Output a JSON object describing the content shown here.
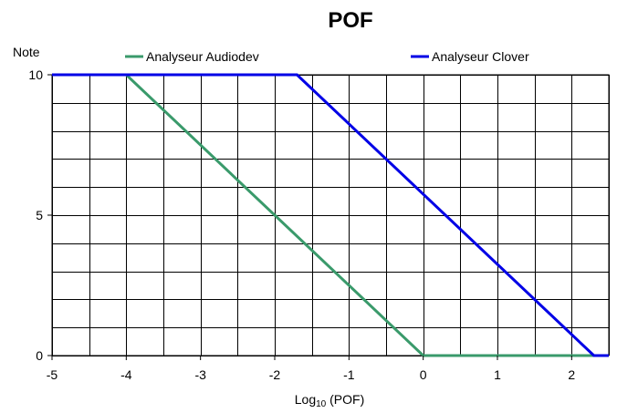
{
  "chart_data": {
    "type": "line",
    "title": "POF",
    "ylabel": "Note",
    "xlabel": "Log10 (POF)",
    "xlabel_main": "Log",
    "xlabel_sub": "10",
    "xlabel_rest": " (POF)",
    "xlim": [
      -5,
      2.5
    ],
    "ylim": [
      0,
      10
    ],
    "x_ticks": [
      -5,
      -4,
      -3,
      -2,
      -1,
      0,
      1,
      2
    ],
    "x_tick_labels": [
      "-5",
      "-4",
      "-3",
      "-2",
      "-1",
      "0",
      "1",
      "2"
    ],
    "y_ticks": [
      0,
      5,
      10
    ],
    "y_tick_labels": [
      "0",
      "5",
      "10"
    ],
    "grid": true,
    "legend_position": "top",
    "series": [
      {
        "name": "Analyseur Audiodev",
        "color": "#3a9a6b",
        "x": [
          -5,
          -4,
          0,
          2.5
        ],
        "y": [
          10,
          10,
          0,
          0
        ]
      },
      {
        "name": "Analyseur Clover",
        "color": "#0000e6",
        "x": [
          -5,
          -1.7,
          2.3,
          2.5
        ],
        "y": [
          10,
          10,
          0,
          0
        ]
      }
    ]
  }
}
